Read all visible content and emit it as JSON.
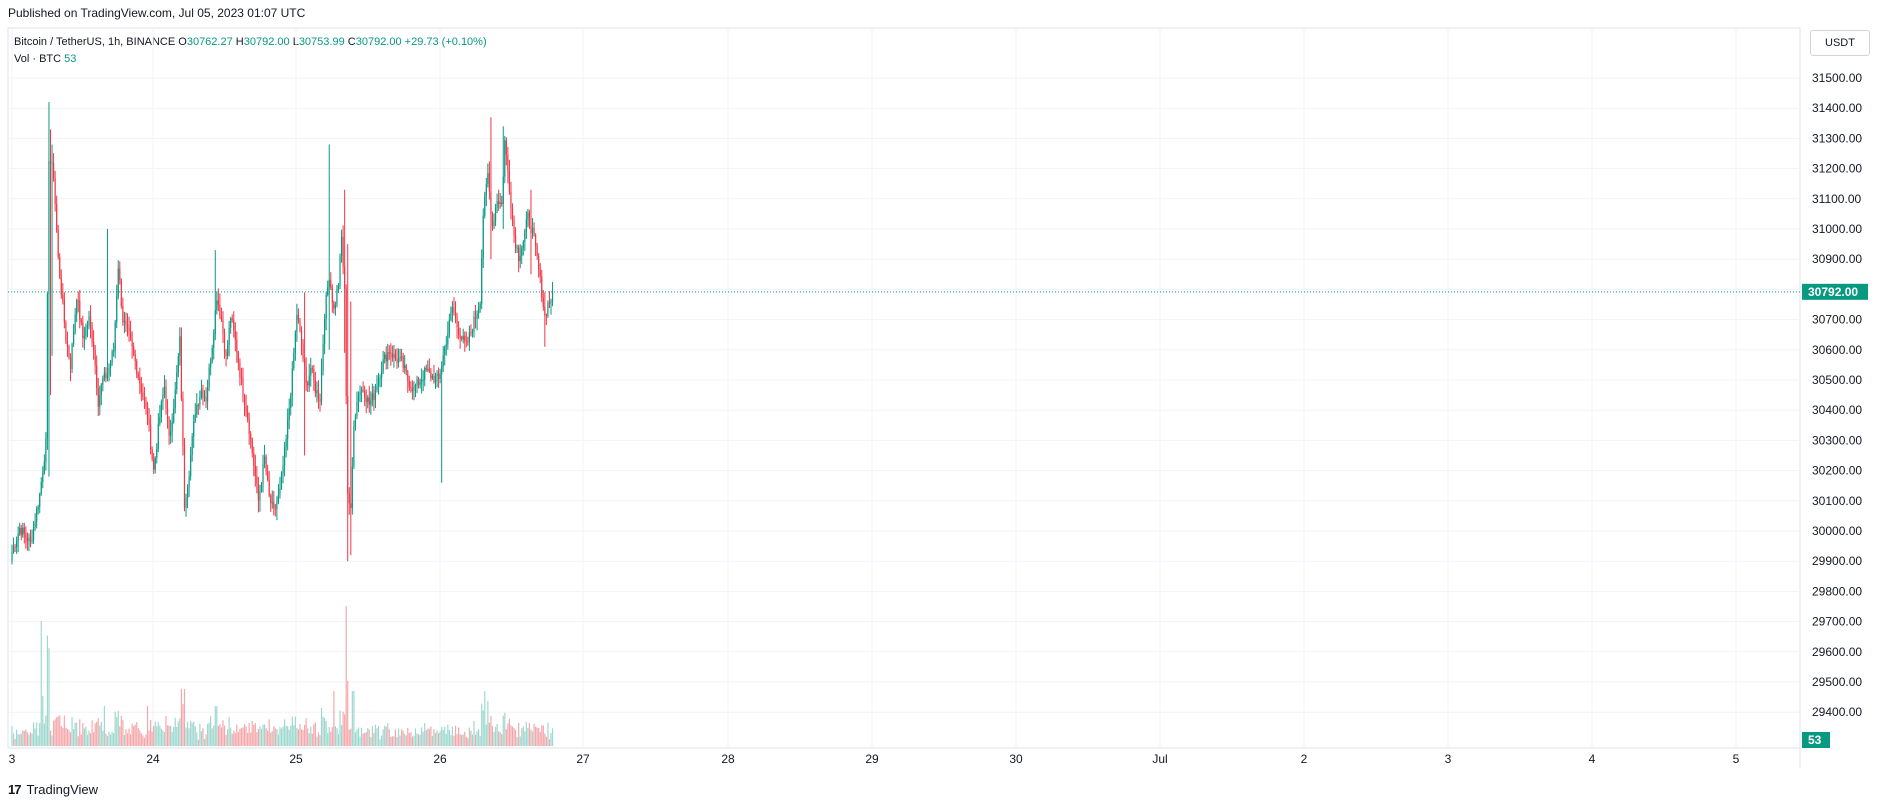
{
  "header": {
    "published": "Published on TradingView.com, Jul 05, 2023 01:07 UTC"
  },
  "legend": {
    "symbol": "Bitcoin / TetherUS, 1h, BINANCE",
    "o_label": "O",
    "o": "30762.27",
    "h_label": "H",
    "h": "30792.00",
    "l_label": "L",
    "l": "30753.99",
    "c_label": "C",
    "c": "30792.00",
    "change": "+29.73 (+0.10%)",
    "vol_label": "Vol · BTC",
    "vol_value": "53"
  },
  "unit_label": "USDT",
  "footer": {
    "brand": "TradingView",
    "logo_glyph": "17"
  },
  "colors": {
    "up": "#089981",
    "down": "#f23645",
    "up_vol": "#9fd8cf",
    "down_vol": "#f5a8ac",
    "grid": "#f0f3fa",
    "axis_text": "#131722"
  },
  "chart_data": {
    "type": "candlestick",
    "price_axis": {
      "ticks": [
        "31500.00",
        "31400.00",
        "31300.00",
        "31200.00",
        "31100.00",
        "31000.00",
        "30900.00",
        "30800.00",
        "30700.00",
        "30600.00",
        "30500.00",
        "30400.00",
        "30300.00",
        "30200.00",
        "30100.00",
        "30000.00",
        "29900.00",
        "29800.00",
        "29700.00",
        "29600.00",
        "29500.00",
        "29400.00"
      ],
      "range": [
        29380,
        31570
      ],
      "last_price": "30792.00",
      "last_volume": "53"
    },
    "time_axis": {
      "labels": [
        "3",
        "24",
        "25",
        "26",
        "27",
        "28",
        "29",
        "30",
        "Jul",
        "2",
        "3",
        "4",
        "5"
      ]
    },
    "anchors": [
      {
        "i": 0,
        "p": 29930
      },
      {
        "i": 5,
        "p": 30010
      },
      {
        "i": 12,
        "p": 29960
      },
      {
        "i": 18,
        "p": 30120
      },
      {
        "i": 22,
        "p": 30290
      },
      {
        "i": 24,
        "p": 31240
      },
      {
        "i": 27,
        "p": 31180
      },
      {
        "i": 30,
        "p": 30900
      },
      {
        "i": 35,
        "p": 30640
      },
      {
        "i": 38,
        "p": 30550
      },
      {
        "i": 42,
        "p": 30780
      },
      {
        "i": 46,
        "p": 30640
      },
      {
        "i": 50,
        "p": 30700
      },
      {
        "i": 53,
        "p": 30610
      },
      {
        "i": 56,
        "p": 30430
      },
      {
        "i": 59,
        "p": 30500
      },
      {
        "i": 62,
        "p": 30520
      },
      {
        "i": 66,
        "p": 30600
      },
      {
        "i": 69,
        "p": 30880
      },
      {
        "i": 72,
        "p": 30700
      },
      {
        "i": 76,
        "p": 30640
      },
      {
        "i": 80,
        "p": 30560
      },
      {
        "i": 84,
        "p": 30470
      },
      {
        "i": 88,
        "p": 30380
      },
      {
        "i": 92,
        "p": 30200
      },
      {
        "i": 96,
        "p": 30380
      },
      {
        "i": 99,
        "p": 30480
      },
      {
        "i": 102,
        "p": 30300
      },
      {
        "i": 106,
        "p": 30460
      },
      {
        "i": 109,
        "p": 30630
      },
      {
        "i": 112,
        "p": 30090
      },
      {
        "i": 115,
        "p": 30200
      },
      {
        "i": 119,
        "p": 30400
      },
      {
        "i": 123,
        "p": 30470
      },
      {
        "i": 126,
        "p": 30440
      },
      {
        "i": 130,
        "p": 30620
      },
      {
        "i": 133,
        "p": 30780
      },
      {
        "i": 136,
        "p": 30700
      },
      {
        "i": 139,
        "p": 30570
      },
      {
        "i": 142,
        "p": 30710
      },
      {
        "i": 146,
        "p": 30600
      },
      {
        "i": 149,
        "p": 30490
      },
      {
        "i": 153,
        "p": 30380
      },
      {
        "i": 157,
        "p": 30220
      },
      {
        "i": 160,
        "p": 30100
      },
      {
        "i": 164,
        "p": 30240
      },
      {
        "i": 167,
        "p": 30110
      },
      {
        "i": 170,
        "p": 30060
      },
      {
        "i": 174,
        "p": 30130
      },
      {
        "i": 178,
        "p": 30300
      },
      {
        "i": 182,
        "p": 30520
      },
      {
        "i": 185,
        "p": 30720
      },
      {
        "i": 188,
        "p": 30620
      },
      {
        "i": 191,
        "p": 30480
      },
      {
        "i": 194,
        "p": 30540
      },
      {
        "i": 197,
        "p": 30470
      },
      {
        "i": 200,
        "p": 30440
      },
      {
        "i": 203,
        "p": 30720
      },
      {
        "i": 206,
        "p": 30850
      },
      {
        "i": 209,
        "p": 30730
      },
      {
        "i": 212,
        "p": 30820
      },
      {
        "i": 214,
        "p": 30970
      },
      {
        "i": 216,
        "p": 30790
      },
      {
        "i": 218,
        "p": 30130
      },
      {
        "i": 220,
        "p": 30060
      },
      {
        "i": 222,
        "p": 30360
      },
      {
        "i": 225,
        "p": 30460
      },
      {
        "i": 228,
        "p": 30470
      },
      {
        "i": 232,
        "p": 30420
      },
      {
        "i": 235,
        "p": 30450
      },
      {
        "i": 238,
        "p": 30510
      },
      {
        "i": 241,
        "p": 30560
      },
      {
        "i": 245,
        "p": 30600
      },
      {
        "i": 249,
        "p": 30570
      },
      {
        "i": 253,
        "p": 30560
      },
      {
        "i": 257,
        "p": 30500
      },
      {
        "i": 261,
        "p": 30470
      },
      {
        "i": 265,
        "p": 30500
      },
      {
        "i": 269,
        "p": 30530
      },
      {
        "i": 273,
        "p": 30510
      },
      {
        "i": 277,
        "p": 30500
      },
      {
        "i": 280,
        "p": 30580
      },
      {
        "i": 283,
        "p": 30660
      },
      {
        "i": 286,
        "p": 30740
      },
      {
        "i": 289,
        "p": 30680
      },
      {
        "i": 292,
        "p": 30640
      },
      {
        "i": 295,
        "p": 30610
      },
      {
        "i": 298,
        "p": 30660
      },
      {
        "i": 301,
        "p": 30710
      },
      {
        "i": 304,
        "p": 30770
      },
      {
        "i": 306,
        "p": 31050
      },
      {
        "i": 309,
        "p": 31180
      },
      {
        "i": 312,
        "p": 31010
      },
      {
        "i": 315,
        "p": 31100
      },
      {
        "i": 318,
        "p": 31080
      },
      {
        "i": 320,
        "p": 31290
      },
      {
        "i": 323,
        "p": 31140
      },
      {
        "i": 326,
        "p": 30980
      },
      {
        "i": 329,
        "p": 30910
      },
      {
        "i": 332,
        "p": 30960
      },
      {
        "i": 335,
        "p": 31040
      },
      {
        "i": 338,
        "p": 30990
      },
      {
        "i": 341,
        "p": 30900
      },
      {
        "i": 344,
        "p": 30790
      },
      {
        "i": 346,
        "p": 30710
      },
      {
        "i": 348,
        "p": 30750
      },
      {
        "i": 350,
        "p": 30770
      },
      {
        "i": 351,
        "p": 30792
      }
    ],
    "wick_extras": [
      {
        "i": 24,
        "high": 31420,
        "low": 30180
      },
      {
        "i": 25,
        "high": 31330,
        "low": 30450
      },
      {
        "i": 26,
        "high": 31280,
        "low": 30580
      },
      {
        "i": 62,
        "high": 31000,
        "low": 30600
      },
      {
        "i": 132,
        "high": 30930,
        "low": 30720
      },
      {
        "i": 190,
        "high": 30790,
        "low": 30250
      },
      {
        "i": 206,
        "high": 31280,
        "low": 30600
      },
      {
        "i": 216,
        "high": 31130,
        "low": 30590
      },
      {
        "i": 218,
        "high": 30950,
        "low": 29900
      },
      {
        "i": 220,
        "high": 30760,
        "low": 29920
      },
      {
        "i": 279,
        "high": 30550,
        "low": 30160
      },
      {
        "i": 311,
        "high": 31370,
        "low": 30900
      },
      {
        "i": 319,
        "high": 31340,
        "low": 31000
      },
      {
        "i": 337,
        "high": 31130,
        "low": 30850
      },
      {
        "i": 346,
        "high": 30790,
        "low": 30610
      }
    ],
    "volume_spikes": [
      {
        "i": 19,
        "v": 25
      },
      {
        "i": 20,
        "v": 10
      },
      {
        "i": 217,
        "v": 30
      },
      {
        "i": 218,
        "v": 13
      },
      {
        "i": 221,
        "v": 11
      },
      {
        "i": 222,
        "v": 11
      },
      {
        "i": 209,
        "v": 11
      },
      {
        "i": 133,
        "v": 8
      },
      {
        "i": 307,
        "v": 11
      },
      {
        "i": 309,
        "v": 9
      },
      {
        "i": 311,
        "v": 6
      },
      {
        "i": 60,
        "v": 8
      },
      {
        "i": 88,
        "v": 8
      },
      {
        "i": 132,
        "v": 8
      },
      {
        "i": 129,
        "v": 6
      }
    ]
  }
}
